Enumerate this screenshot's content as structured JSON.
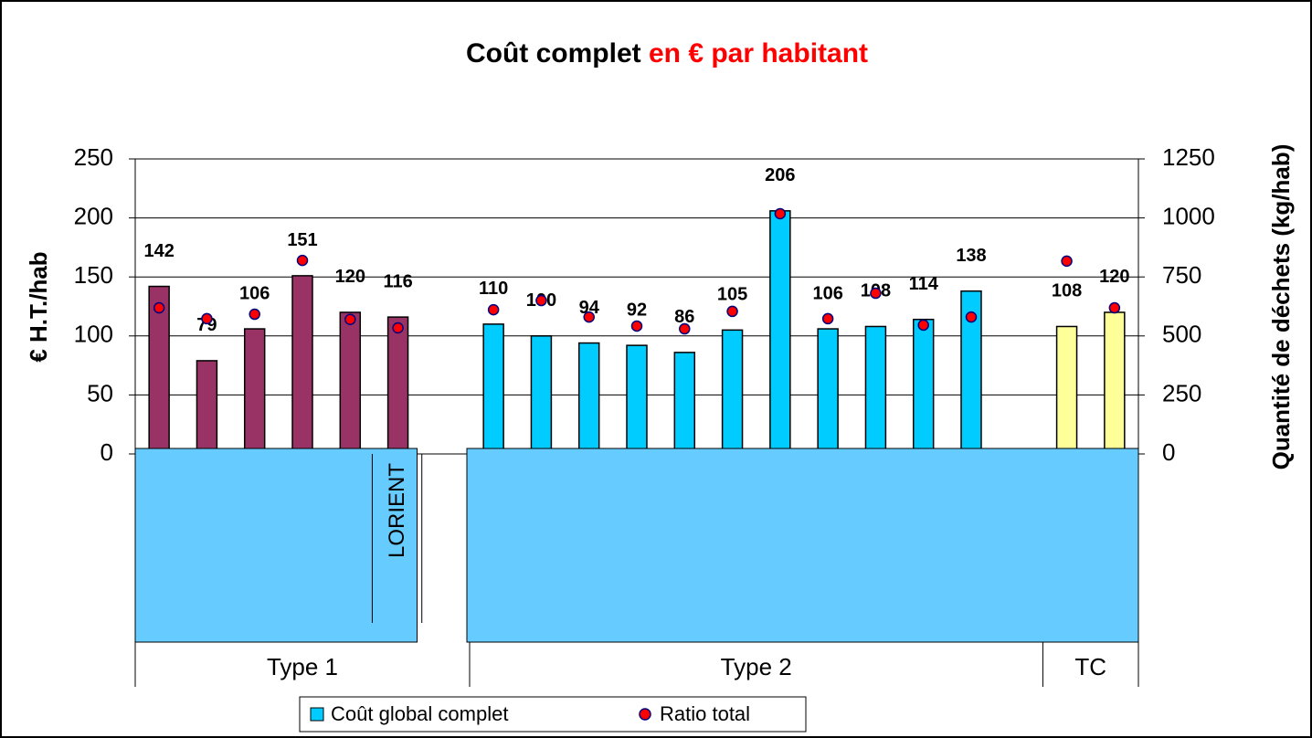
{
  "chart_data": {
    "type": "bar",
    "title": "Coût complet ",
    "title_highlight": "en € par habitant",
    "title_highlight_color": "#ff0000",
    "ylabel": "€ H.T./hab",
    "y2label": "Quantité de déchets (kg/hab)",
    "categories": [
      null,
      null,
      null,
      null,
      null,
      "LORIENT",
      null,
      null,
      null,
      null,
      null,
      null,
      null,
      null,
      null,
      null,
      null,
      null,
      null,
      null,
      null
    ],
    "groups": [
      {
        "name": "Type 1",
        "count": 7
      },
      {
        "name": "Type 2",
        "count": 12
      },
      {
        "name": "TC",
        "count": 2
      }
    ],
    "series": [
      {
        "name": "Coût global complet",
        "color": "#00ccff",
        "bar_colors": [
          "#993366",
          "#993366",
          "#993366",
          "#993366",
          "#993366",
          "#993366",
          null,
          "#00ccff",
          "#00ccff",
          "#00ccff",
          "#00ccff",
          "#00ccff",
          "#00ccff",
          "#00ccff",
          "#00ccff",
          "#00ccff",
          "#00ccff",
          "#00ccff",
          null,
          "#ffff99",
          "#ffff99"
        ],
        "values": [
          142,
          79,
          106,
          151,
          120,
          116,
          null,
          110,
          100,
          94,
          92,
          86,
          105,
          206,
          106,
          108,
          114,
          138,
          null,
          108,
          120
        ]
      },
      {
        "name": "Ratio total",
        "color": "#ff0000",
        "type": "scatter",
        "axis": "y2",
        "values": [
          619,
          573,
          592,
          820,
          570,
          534,
          null,
          611,
          650,
          580,
          542,
          530,
          604,
          1018,
          573,
          681,
          546,
          580,
          null,
          817,
          619
        ]
      }
    ],
    "ylim": [
      0,
      250
    ],
    "yticks": [
      0,
      50,
      100,
      150,
      200,
      250
    ],
    "y2lim": [
      0,
      1250
    ],
    "y2ticks": [
      0,
      250,
      500,
      750,
      1000,
      1250
    ],
    "grid": true
  }
}
